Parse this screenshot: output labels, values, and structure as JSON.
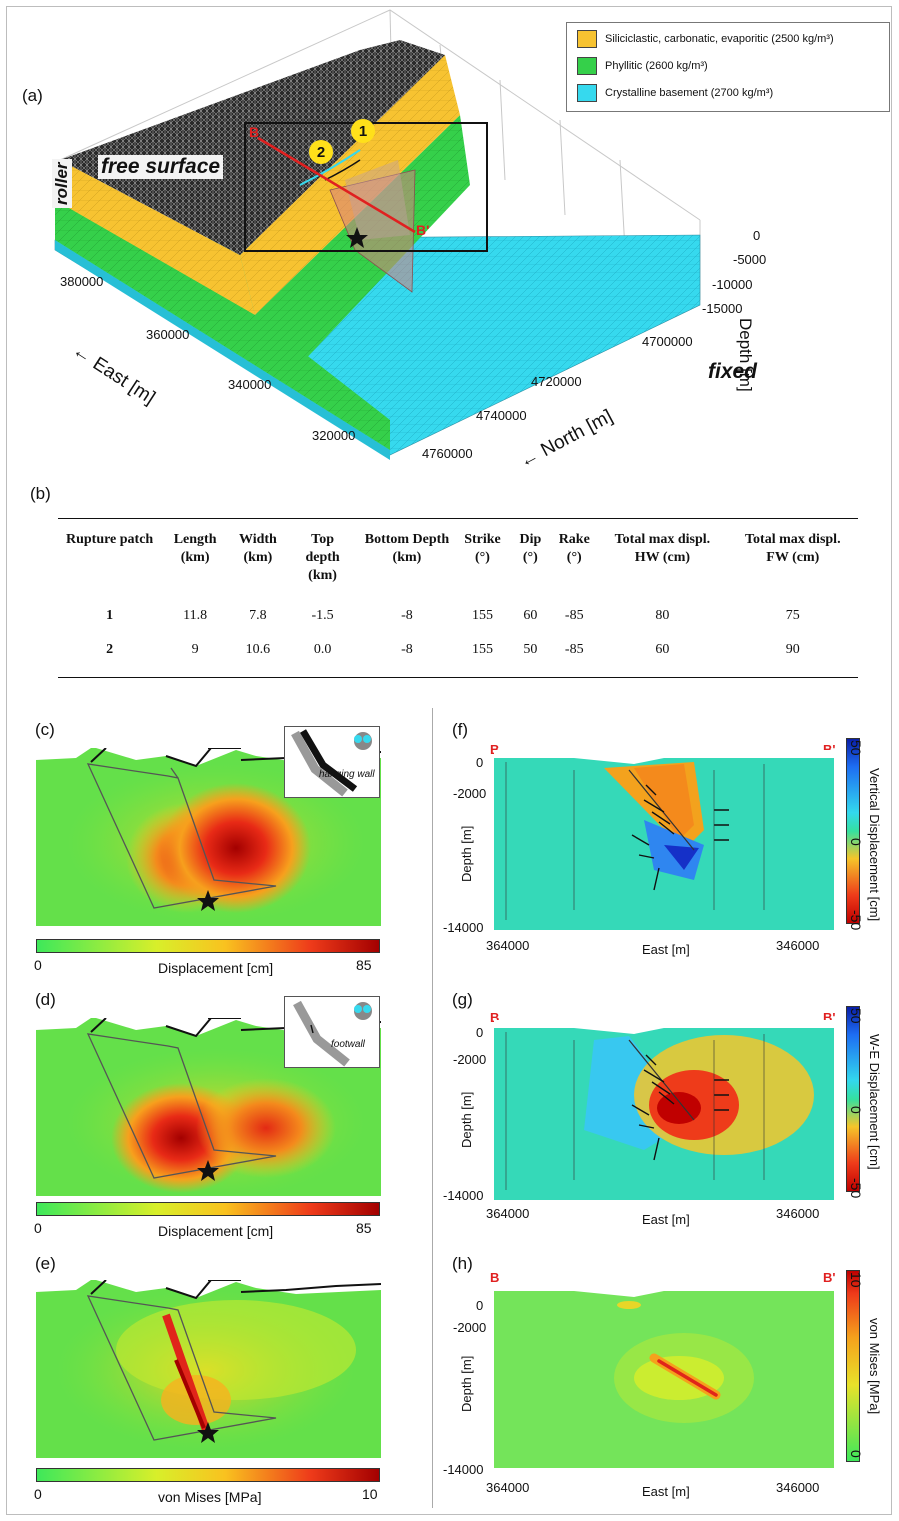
{
  "panel_a": {
    "label": "(a)",
    "legend": [
      {
        "text": "Siliciclastic, carbonatic, evaporitic (2500 kg/m³)",
        "color": "#f7c331"
      },
      {
        "text": "Phyllitic (2600 kg/m³)",
        "color": "#35d04a"
      },
      {
        "text": "Crystalline basement (2700 kg/m³)",
        "color": "#36d9ee"
      }
    ],
    "labels": {
      "free_surface": "free surface",
      "roller": "roller",
      "fixed": "fixed",
      "east_axis": "East [m]",
      "north_axis": "North [m]",
      "depth_axis": "Depth [m]",
      "b": "B",
      "b_prime": "B'",
      "patch1": "1",
      "patch2": "2"
    },
    "east_ticks": [
      "380000",
      "360000",
      "340000",
      "320000"
    ],
    "north_ticks": [
      "4700000",
      "4720000",
      "4740000",
      "4760000"
    ],
    "depth_ticks": [
      "0",
      "-5000",
      "-10000",
      "-15000"
    ]
  },
  "panel_b": {
    "label": "(b)",
    "headers": [
      "Rupture patch",
      "Length (km)",
      "Width (km)",
      "Top depth (km)",
      "Bottom Depth (km)",
      "Strike (°)",
      "Dip (°)",
      "Rake (°)",
      "Total max displ. HW (cm)",
      "Total max displ. FW (cm)"
    ],
    "rows": [
      [
        "1",
        "11.8",
        "7.8",
        "-1.5",
        "-8",
        "155",
        "60",
        "-85",
        "80",
        "75"
      ],
      [
        "2",
        "9",
        "10.6",
        "0.0",
        "-8",
        "155",
        "50",
        "-85",
        "60",
        "90"
      ]
    ]
  },
  "panel_c": {
    "label": "(c)",
    "inset": "hanging wall",
    "cbar_label": "Displacement [cm]",
    "cbar_min": "0",
    "cbar_max": "85"
  },
  "panel_d": {
    "label": "(d)",
    "inset": "footwall",
    "cbar_label": "Displacement [cm]",
    "cbar_min": "0",
    "cbar_max": "85"
  },
  "panel_e": {
    "label": "(e)",
    "cbar_label": "von Mises [MPa]",
    "cbar_min": "0",
    "cbar_max": "10"
  },
  "sections": {
    "b": "B",
    "b_prime": "B'",
    "depth_label": "Depth [m]",
    "east_label": "East [m]",
    "x_left": "364000",
    "x_right": "346000",
    "y_ticks": [
      "0",
      "-2000",
      "-14000"
    ]
  },
  "panel_f": {
    "label": "(f)",
    "cbar_label": "Vertical Displacement [cm]",
    "cbar_ticks": [
      "50",
      "0",
      "-50"
    ]
  },
  "panel_g": {
    "label": "(g)",
    "cbar_label": "W-E Displacement [cm]",
    "cbar_ticks": [
      "50",
      "0",
      "-50"
    ]
  },
  "panel_h": {
    "label": "(h)",
    "cbar_label": "von Mises [MPa]",
    "cbar_ticks": [
      "10",
      "0"
    ]
  },
  "colors": {
    "sediment": "#f7c331",
    "phyllitic": "#35d04a",
    "basement": "#36d9ee",
    "red_label": "#e02020",
    "patch_marker": "#ffe01a"
  }
}
